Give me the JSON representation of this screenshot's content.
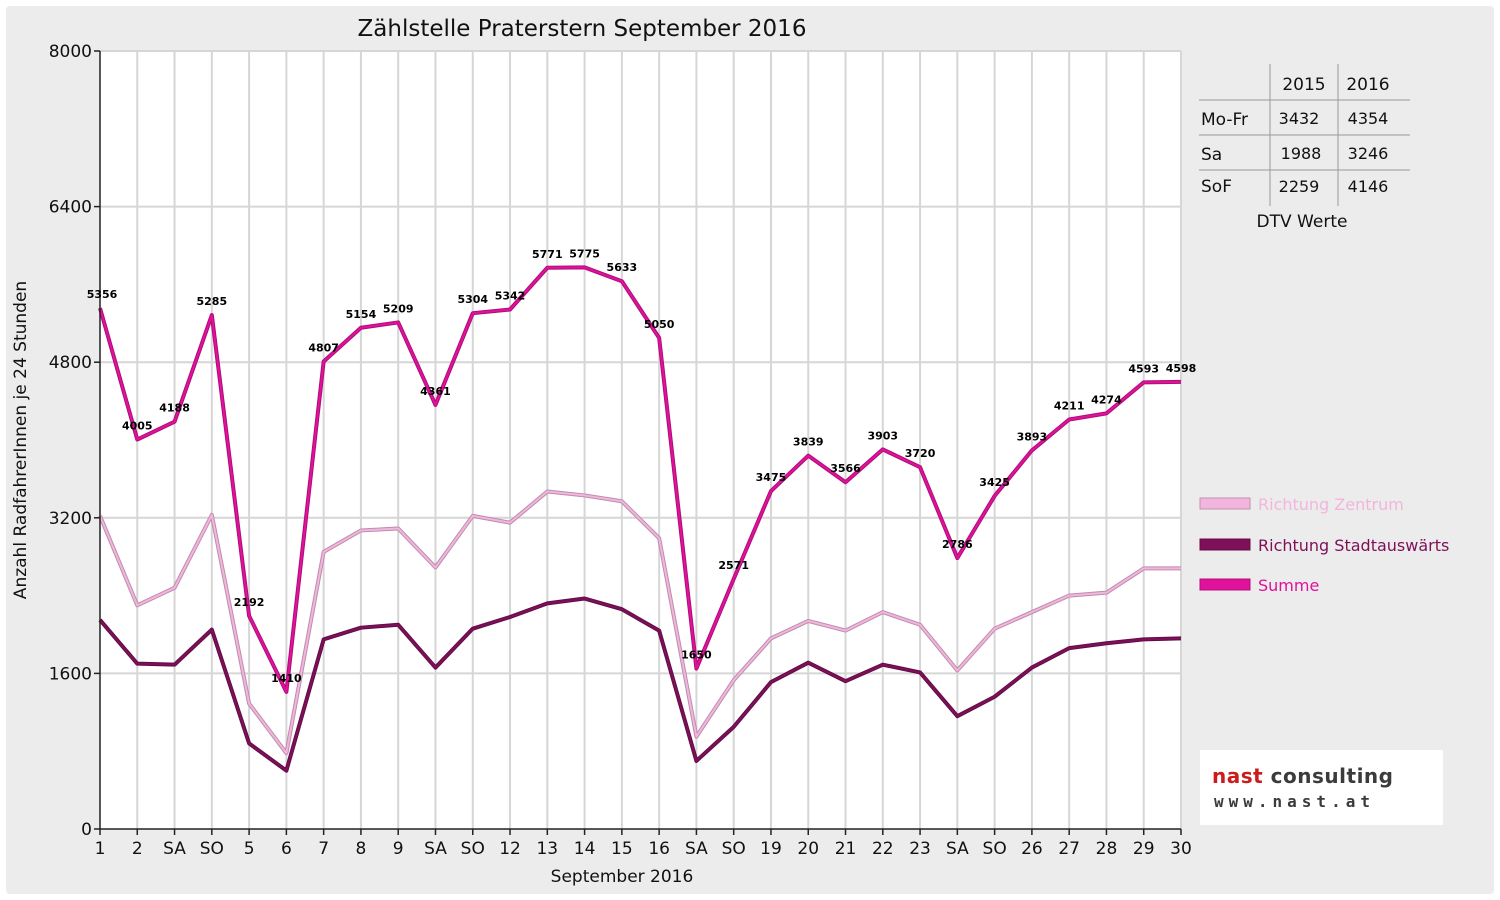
{
  "chart_data": {
    "type": "line",
    "title": "Zählstelle Praterstern September 2016",
    "xlabel": "September 2016",
    "ylabel": "Anzahl RadfahrerInnen je 24 Stunden",
    "ylim": [
      0,
      8000
    ],
    "yticks": [
      0,
      1600,
      3200,
      4800,
      6400,
      8000
    ],
    "grid": true,
    "legend_position": "right",
    "x_tick_labels": [
      "1",
      "2",
      "SA",
      "SO",
      "5",
      "6",
      "7",
      "8",
      "9",
      "SA",
      "SO",
      "12",
      "13",
      "14",
      "15",
      "16",
      "SA",
      "SO",
      "19",
      "20",
      "21",
      "22",
      "23",
      "SA",
      "SO",
      "26",
      "27",
      "28",
      "29",
      "30"
    ],
    "x_tick_colors": [
      "#111111",
      "#111111",
      "#111111",
      "#ee0000",
      "#111111",
      "#111111",
      "#111111",
      "#111111",
      "#111111",
      "#111111",
      "#ee0000",
      "#111111",
      "#111111",
      "#111111",
      "#111111",
      "#111111",
      "#111111",
      "#ee0000",
      "#111111",
      "#111111",
      "#111111",
      "#111111",
      "#111111",
      "#111111",
      "#ee0000",
      "#111111",
      "#111111",
      "#111111",
      "#111111",
      "#111111"
    ],
    "series": [
      {
        "name": "Richtung Zentrum",
        "color": "#f2b5dd",
        "values": [
          3220,
          2300,
          2480,
          3230,
          1290,
          780,
          2850,
          3070,
          3090,
          2690,
          3220,
          3150,
          3470,
          3430,
          3370,
          2990,
          950,
          1530,
          1960,
          2140,
          2040,
          2230,
          2100,
          1630,
          2060,
          2230,
          2400,
          2430,
          2680,
          2680
        ]
      },
      {
        "name": "Richtung Stadtauswärts",
        "color": "#7e1059",
        "values": [
          2150,
          1700,
          1690,
          2050,
          880,
          600,
          1950,
          2070,
          2100,
          1660,
          2060,
          2180,
          2320,
          2370,
          2260,
          2040,
          700,
          1050,
          1510,
          1710,
          1520,
          1690,
          1610,
          1160,
          1360,
          1660,
          1860,
          1910,
          1950,
          1960
        ]
      },
      {
        "name": "Summe",
        "color": "#e0119a",
        "values": [
          5356,
          4005,
          4188,
          5285,
          2192,
          1410,
          4807,
          5154,
          5209,
          4361,
          5304,
          5342,
          5771,
          5775,
          5633,
          5050,
          1650,
          2571,
          3475,
          3839,
          3566,
          3903,
          3720,
          2786,
          3425,
          3893,
          4211,
          4274,
          4593,
          4598
        ]
      }
    ],
    "data_labels": [
      "5356",
      "4005",
      "4188",
      "5285",
      "2192",
      "1410",
      "4807",
      "5154",
      "5209",
      "4361",
      "5304",
      "5342",
      "5771",
      "5775",
      "5633",
      "5050",
      "1650",
      "2571",
      "3475",
      "3839",
      "3566",
      "3903",
      "3720",
      "2786",
      "3425",
      "3893",
      "4211",
      "4274",
      "4593",
      "4598"
    ]
  },
  "dtv_table": {
    "caption": "DTV Werte",
    "headers": [
      "",
      "2015",
      "2016"
    ],
    "rows": [
      {
        "label": "Mo-Fr",
        "v2015": "3432",
        "v2016": "4354"
      },
      {
        "label": "Sa",
        "v2015": "1988",
        "v2016": "3246"
      },
      {
        "label": "SoF",
        "v2015": "2259",
        "v2016": "4146"
      }
    ]
  },
  "logo": {
    "word1": "nast",
    "word2": "consulting",
    "url": "www.nast.at",
    "colors": {
      "word1": "#cc1b1b",
      "word2": "#3b3b3b"
    }
  }
}
